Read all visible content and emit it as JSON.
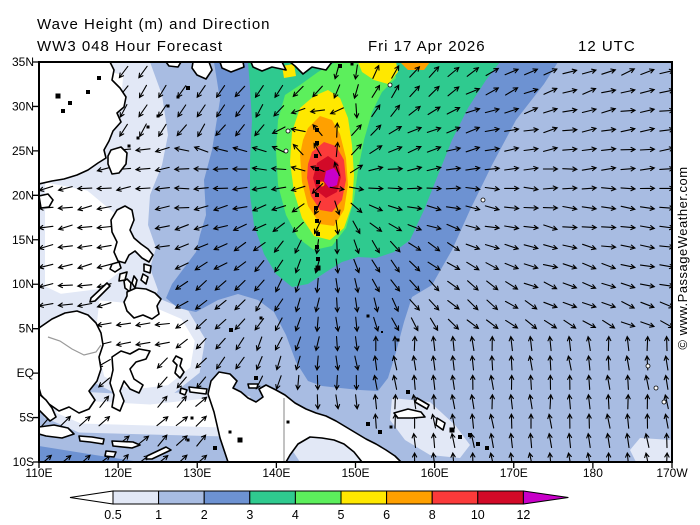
{
  "header": {
    "title": "Wave Height (m) and Direction",
    "model_line": "WW3 048 Hour Forecast",
    "valid_date": "Fri 17 Apr 2026",
    "valid_time": "12 UTC"
  },
  "watermark": "© www.PassageWeather.com",
  "axes": {
    "lat_labels": [
      "35N",
      "30N",
      "25N",
      "20N",
      "15N",
      "10N",
      "5N",
      "EQ",
      "5S",
      "10S"
    ],
    "lat_values": [
      35,
      30,
      25,
      20,
      15,
      10,
      5,
      0,
      -5,
      -10
    ],
    "lon_labels": [
      "110E",
      "120E",
      "130E",
      "140E",
      "150E",
      "160E",
      "170E",
      "180",
      "170W"
    ],
    "lon_values": [
      110,
      120,
      130,
      140,
      150,
      160,
      170,
      180,
      190
    ]
  },
  "colorbar": {
    "tick_labels": [
      "0.5",
      "1",
      "2",
      "3",
      "4",
      "5",
      "6",
      "8",
      "10",
      "12"
    ],
    "segment_colors": [
      "#e2e8f6",
      "#a8bce2",
      "#6d92d2",
      "#2fca8f",
      "#5cef5c",
      "#ffe800",
      "#ffa000",
      "#fb3a3a",
      "#d20a28"
    ],
    "below_min_color": "#ffffff",
    "above_max_color": "#c800c8"
  },
  "map": {
    "storm_center_lon": "147E",
    "storm_center_lat": "21.5N",
    "peak_wave_height_m": "12+",
    "land_color": "#ffffff",
    "coast_color": "#000000",
    "country_border_color": "#9a9a9a",
    "arrow_color": "#000000"
  }
}
